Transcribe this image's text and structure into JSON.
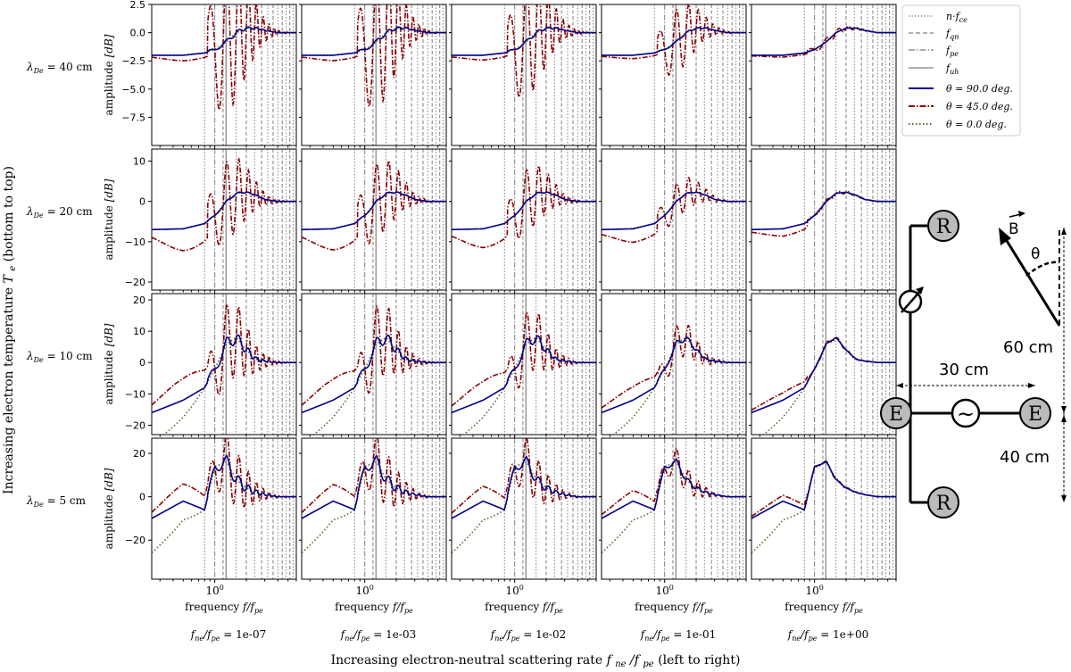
{
  "chart_data": {
    "type": "line",
    "title": "",
    "figure_xlabel": "Increasing electron-neutral scattering rate f_ne/f_pe (left to right)",
    "figure_ylabel": "Increasing electron temperature T_e (bottom to top)",
    "panel_xlabel": "frequency f/f_pe",
    "panel_ylabel": "amplitude [dB]",
    "xscale": "log",
    "xlim": [
      0.25,
      6.0
    ],
    "x_tick_label": "10^0",
    "columns": [
      "f_ne/f_pe = 1e-07",
      "f_ne/f_pe = 1e-03",
      "f_ne/f_pe = 1e-02",
      "f_ne/f_pe = 1e-01",
      "f_ne/f_pe = 1e+00"
    ],
    "rows": [
      {
        "label": "λ_De = 40 cm",
        "ylim": [
          -10,
          2.5
        ],
        "yticks": [
          "2.5",
          "0.0",
          "-2.5",
          "-5.0",
          "-7.5"
        ]
      },
      {
        "label": "λ_De = 20 cm",
        "ylim": [
          -22,
          13
        ],
        "yticks": [
          "10",
          "0",
          "-10",
          "-20"
        ]
      },
      {
        "label": "λ_De = 10 cm",
        "ylim": [
          -23,
          22
        ],
        "yticks": [
          "20",
          "10",
          "0",
          "-10",
          "-20"
        ]
      },
      {
        "label": "λ_De = 5 cm",
        "ylim": [
          -38,
          27
        ],
        "yticks": [
          "20",
          "0",
          "-20"
        ]
      }
    ],
    "legend": [
      {
        "label": "n·f_ce",
        "style": "dotted",
        "color": "#7f7f7f"
      },
      {
        "label": "f_qn",
        "style": "dashed",
        "color": "#7f7f7f"
      },
      {
        "label": "f_pe",
        "style": "dashdot",
        "color": "#7f7f7f"
      },
      {
        "label": "f_uh",
        "style": "solid",
        "color": "#7f7f7f"
      },
      {
        "label": "θ = 90.0 deg.",
        "style": "solid",
        "color": "#00008b"
      },
      {
        "label": "θ = 45.0 deg.",
        "style": "dashdot",
        "color": "#8b0000"
      },
      {
        "label": "θ = 0.0 deg.",
        "style": "dotted",
        "color": "#556b2f"
      }
    ],
    "vlines": {
      "n_fce": [
        0.8,
        1.6,
        2.4,
        3.2,
        4.0,
        4.8,
        5.6
      ],
      "f_qn": [
        1.2,
        2.0,
        2.8,
        3.6,
        4.4,
        5.2
      ],
      "f_pe": [
        1.0
      ],
      "f_uh": [
        1.28
      ]
    },
    "base_curve": {
      "x": [
        0.25,
        0.5,
        0.8,
        1.0,
        1.3,
        1.6,
        2.0,
        2.5,
        3.0,
        4.0,
        6.0
      ],
      "y_per_row": [
        [
          -2.0,
          -2.0,
          -1.8,
          -1.5,
          -0.8,
          0.0,
          0.4,
          0.4,
          0.2,
          0.0,
          0.0
        ],
        [
          -7.0,
          -6.8,
          -5.5,
          -3.5,
          0.0,
          2.0,
          2.3,
          1.5,
          0.5,
          0.0,
          0.0
        ],
        [
          -16.0,
          -12.0,
          -8.0,
          -2.0,
          6.0,
          8.0,
          4.0,
          1.0,
          0.5,
          0.0,
          0.0
        ],
        [
          -10.0,
          -2.0,
          -6.0,
          14.0,
          16.0,
          8.0,
          4.0,
          2.0,
          1.0,
          0.0,
          0.0
        ]
      ]
    }
  },
  "labels": {
    "freq_prefix": "frequency ",
    "freq_var": "f/f",
    "freq_sub": "pe",
    "amp_prefix": "amplitude ",
    "amp_unit": "[dB]",
    "ten": "10",
    "zero": "0",
    "row_labels": [
      "λDe = 40 cm",
      "λDe = 20 cm",
      "λDe = 10 cm",
      "λDe = 5 cm"
    ],
    "row_sym": "λ",
    "row_sub": "De",
    "row_values": [
      "= 40 cm",
      "= 20 cm",
      "= 10 cm",
      "= 5 cm"
    ],
    "col_var": "f",
    "col_sub1": "ne",
    "col_sub2": "pe",
    "col_values": [
      "= 1e-07",
      "= 1e-03",
      "= 1e-02",
      "= 1e-01",
      "= 1e+00"
    ],
    "ylabel_fig_text": "Increasing electron temperature",
    "ylabel_fig_sym": "T",
    "ylabel_fig_sub": "e",
    "ylabel_fig_tail": " (bottom to top)",
    "xlabel_fig_text": "Increasing electron-neutral scattering rate ",
    "xlabel_fig_tail": " (left to right)"
  },
  "legend_text": {
    "l0": "n·f",
    "l0sub": "ce",
    "l1": "f",
    "l1sub": "qn",
    "l2": "f",
    "l2sub": "pe",
    "l3": "f",
    "l3sub": "uh",
    "l4": "θ = 90.0 deg.",
    "l5": "θ = 45.0 deg.",
    "l6": "θ = 0.0 deg."
  },
  "schematic": {
    "receiver": "R",
    "emitter": "E",
    "field": "B",
    "angle": "θ",
    "dist_vertical": "60 cm",
    "dist_horizontal": "30 cm",
    "dist_lower": "40 cm",
    "source_symbol": "~"
  },
  "colors": {
    "perp": "#00008b",
    "oblique": "#8b0000",
    "parallel": "#556b2f",
    "ref": "#7f7f7f"
  }
}
